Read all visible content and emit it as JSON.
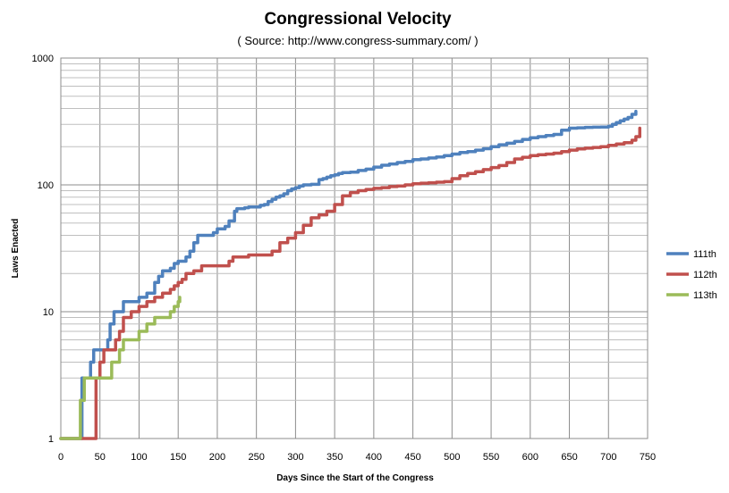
{
  "chart_data": {
    "type": "line",
    "title": "Congressional Velocity",
    "subtitle": "( Source: http://www.congress-summary.com/ )",
    "xlabel": "Days Since the Start of the Congress",
    "ylabel": "Laws Enacted",
    "xlim": [
      0,
      750
    ],
    "ylim": [
      1,
      1000
    ],
    "yscale": "log",
    "grid": true,
    "legend_position": "right",
    "x_ticks": [
      "0",
      "50",
      "100",
      "150",
      "200",
      "250",
      "300",
      "350",
      "400",
      "450",
      "500",
      "550",
      "600",
      "650",
      "700",
      "750"
    ],
    "y_ticks": [
      "1",
      "10",
      "100",
      "1000"
    ],
    "series": [
      {
        "name": "111th",
        "color": "#4f81bd",
        "x": [
          0,
          27,
          35,
          38,
          42,
          50,
          55,
          60,
          63,
          68,
          75,
          80,
          85,
          92,
          100,
          110,
          120,
          125,
          130,
          140,
          145,
          150,
          155,
          160,
          165,
          170,
          175,
          180,
          185,
          195,
          200,
          210,
          215,
          222,
          225,
          230,
          235,
          240,
          245,
          250,
          255,
          260,
          265,
          270,
          275,
          280,
          285,
          290,
          295,
          300,
          305,
          310,
          315,
          320,
          325,
          330,
          335,
          340,
          345,
          350,
          355,
          360,
          370,
          380,
          390,
          400,
          410,
          420,
          430,
          440,
          450,
          460,
          470,
          480,
          490,
          500,
          510,
          520,
          530,
          540,
          550,
          560,
          570,
          580,
          590,
          600,
          610,
          620,
          630,
          640,
          650,
          660,
          670,
          680,
          690,
          700,
          705,
          710,
          715,
          720,
          725,
          730,
          735
        ],
        "y": [
          1,
          3,
          3,
          4,
          5,
          5,
          5,
          6,
          8,
          10,
          10,
          12,
          12,
          12,
          13,
          14,
          17,
          19,
          21,
          22,
          24,
          25,
          25,
          27,
          30,
          35,
          40,
          40,
          40,
          42,
          45,
          47,
          52,
          62,
          65,
          65,
          66,
          67,
          67,
          67,
          69,
          70,
          74,
          77,
          80,
          82,
          85,
          90,
          93,
          95,
          98,
          100,
          100,
          101,
          101,
          110,
          112,
          115,
          118,
          120,
          123,
          125,
          126,
          130,
          133,
          138,
          143,
          146,
          150,
          153,
          158,
          160,
          163,
          166,
          170,
          175,
          180,
          183,
          188,
          193,
          200,
          207,
          213,
          220,
          228,
          235,
          240,
          245,
          250,
          270,
          280,
          282,
          284,
          285,
          286,
          290,
          300,
          310,
          320,
          330,
          340,
          360,
          380
        ]
      },
      {
        "name": "112th",
        "color": "#c0504d",
        "x": [
          0,
          30,
          40,
          45,
          50,
          55,
          60,
          65,
          70,
          75,
          80,
          90,
          100,
          110,
          120,
          130,
          140,
          145,
          150,
          155,
          160,
          170,
          180,
          200,
          215,
          220,
          240,
          260,
          270,
          280,
          290,
          300,
          310,
          320,
          330,
          340,
          350,
          360,
          370,
          380,
          390,
          400,
          410,
          420,
          430,
          440,
          450,
          460,
          470,
          480,
          490,
          500,
          510,
          520,
          530,
          540,
          550,
          560,
          570,
          580,
          590,
          600,
          610,
          620,
          630,
          640,
          650,
          660,
          670,
          680,
          690,
          700,
          710,
          720,
          730,
          735,
          740
        ],
        "y": [
          1,
          1,
          1,
          3,
          4,
          5,
          5,
          5,
          6,
          7,
          9,
          10,
          11,
          12,
          13,
          14,
          15,
          16,
          17,
          18,
          20,
          21,
          23,
          23,
          25,
          27,
          28,
          28,
          30,
          35,
          38,
          42,
          48,
          55,
          58,
          62,
          70,
          82,
          87,
          90,
          92,
          94,
          95,
          97,
          98,
          100,
          102,
          103,
          104,
          105,
          106,
          112,
          118,
          123,
          127,
          132,
          137,
          142,
          150,
          160,
          165,
          170,
          173,
          175,
          178,
          183,
          188,
          192,
          195,
          197,
          200,
          205,
          210,
          215,
          225,
          240,
          280
        ]
      },
      {
        "name": "113th",
        "color": "#9bbb59",
        "x": [
          0,
          20,
          25,
          30,
          40,
          45,
          50,
          55,
          60,
          65,
          70,
          75,
          80,
          90,
          100,
          110,
          120,
          130,
          140,
          145,
          150,
          152
        ],
        "y": [
          1,
          1,
          2,
          3,
          3,
          3,
          3,
          3,
          3,
          4,
          4,
          5,
          6,
          6,
          7,
          8,
          9,
          9,
          10,
          11,
          12,
          13
        ]
      }
    ]
  }
}
